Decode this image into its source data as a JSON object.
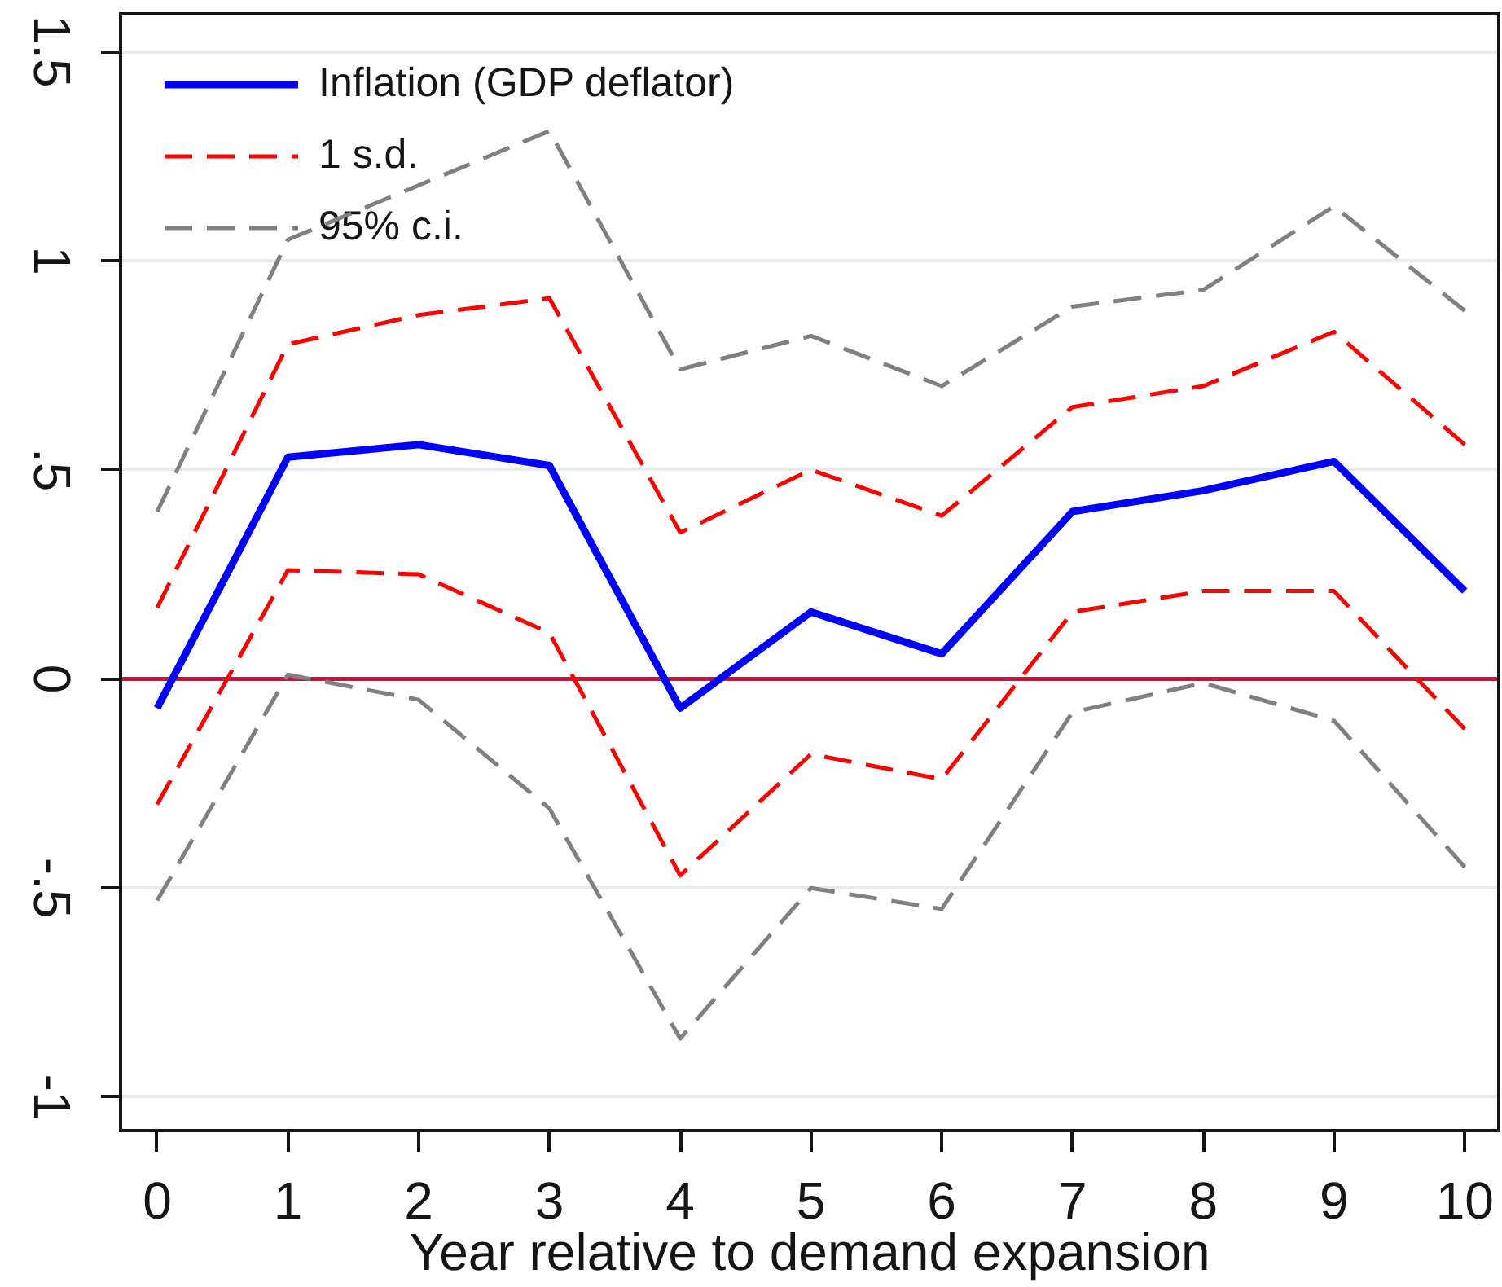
{
  "chart_data": {
    "type": "line",
    "xlabel": "Year relative to demand expansion",
    "x": [
      0,
      1,
      2,
      3,
      4,
      5,
      6,
      7,
      8,
      9,
      10
    ],
    "xlim": [
      -0.28,
      10.26
    ],
    "xticks": [
      0,
      1,
      2,
      3,
      4,
      5,
      6,
      7,
      8,
      9,
      10
    ],
    "ylim": [
      -1.08,
      1.59
    ],
    "yticks": [
      -1,
      {
        "value": -0.5,
        "label": "-.5"
      },
      0,
      {
        "value": 0.5,
        "label": ".5"
      },
      1,
      1.5
    ],
    "grid": "y",
    "legend": "top left",
    "ref_lines": [
      {
        "axis": "y",
        "value": 0,
        "color": "#d0103c"
      }
    ],
    "series": [
      {
        "name": "Inflation (GDP deflator)",
        "color": "#0000ff",
        "line_style": "solid",
        "values": [
          -0.07,
          0.53,
          0.56,
          0.51,
          -0.07,
          0.16,
          0.06,
          0.4,
          0.45,
          0.52,
          0.21
        ]
      },
      {
        "name": "1 s.d.",
        "color": "#ff0000",
        "line_style": "dashed",
        "values": [
          0.17,
          0.8,
          0.87,
          0.91,
          0.35,
          0.5,
          0.39,
          0.65,
          0.7,
          0.83,
          0.56
        ]
      },
      {
        "color": "#ff0000",
        "line_style": "dashed",
        "values": [
          -0.3,
          0.26,
          0.25,
          0.11,
          -0.47,
          -0.18,
          -0.24,
          0.16,
          0.21,
          0.21,
          -0.12
        ]
      },
      {
        "name": "95% c.i.",
        "color": "#808080",
        "line_style": "dashed",
        "values": [
          0.4,
          1.05,
          1.18,
          1.31,
          0.74,
          0.82,
          0.7,
          0.89,
          0.93,
          1.13,
          0.88
        ]
      },
      {
        "color": "#808080",
        "line_style": "dashed",
        "values": [
          -0.53,
          0.01,
          -0.05,
          -0.31,
          -0.86,
          -0.5,
          -0.55,
          -0.08,
          -0.01,
          -0.1,
          -0.45
        ]
      }
    ]
  }
}
